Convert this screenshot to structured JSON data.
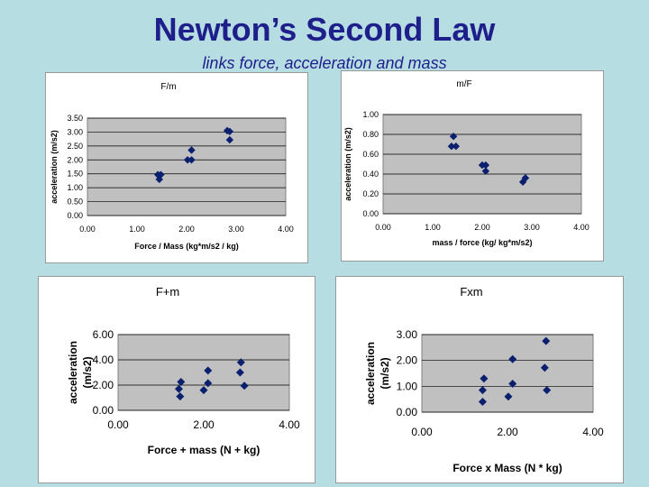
{
  "slide": {
    "title": "Newton’s Second Law",
    "subtitle": "links force, acceleration and mass"
  },
  "colors": {
    "background": "#b6dde1",
    "title": "#1f1f8c",
    "plot_area": "#c0c0c0",
    "marker": "#0a1f6e"
  },
  "chart_data": [
    {
      "type": "scatter",
      "title": "F/m",
      "xlabel": "Force / Mass   (kg*m/s2  / kg)",
      "ylabel": "acceleration (m/s2)",
      "xlim": [
        0,
        4
      ],
      "ylim": [
        0,
        3.5
      ],
      "xticks": [
        "0.00",
        "1.00",
        "2.00",
        "3.00",
        "4.00"
      ],
      "yticks": [
        "0.00",
        "0.50",
        "1.00",
        "1.50",
        "2.00",
        "2.50",
        "3.00",
        "3.50"
      ],
      "grid": true,
      "points": [
        {
          "x": 1.42,
          "y": 1.47
        },
        {
          "x": 1.48,
          "y": 1.47
        },
        {
          "x": 1.45,
          "y": 1.3
        },
        {
          "x": 2.02,
          "y": 2.0
        },
        {
          "x": 2.1,
          "y": 2.0
        },
        {
          "x": 2.1,
          "y": 2.35
        },
        {
          "x": 2.82,
          "y": 3.05
        },
        {
          "x": 2.87,
          "y": 3.02
        },
        {
          "x": 2.87,
          "y": 2.72
        }
      ]
    },
    {
      "type": "scatter",
      "title": "m/F",
      "xlabel": "mass / force   (kg/ kg*m/s2)",
      "ylabel": "acceleration (m/s2)",
      "xlim": [
        0,
        4
      ],
      "ylim": [
        0,
        1
      ],
      "xticks": [
        "0.00",
        "1.00",
        "2.00",
        "3.00",
        "4.00"
      ],
      "yticks": [
        "0.00",
        "0.20",
        "0.40",
        "0.60",
        "0.80",
        "1.00"
      ],
      "grid": true,
      "points": [
        {
          "x": 1.42,
          "y": 0.78
        },
        {
          "x": 1.38,
          "y": 0.68
        },
        {
          "x": 1.47,
          "y": 0.68
        },
        {
          "x": 2.0,
          "y": 0.49
        },
        {
          "x": 2.07,
          "y": 0.49
        },
        {
          "x": 2.07,
          "y": 0.43
        },
        {
          "x": 2.82,
          "y": 0.32
        },
        {
          "x": 2.87,
          "y": 0.36
        },
        {
          "x": 2.87,
          "y": 0.36
        }
      ]
    },
    {
      "type": "scatter",
      "title": "F+m",
      "xlabel": "Force + mass  (N + kg)",
      "ylabel": "acceleration (m/s2)",
      "xlim": [
        0,
        4
      ],
      "ylim": [
        0,
        6
      ],
      "xticks": [
        "0.00",
        "2.00",
        "4.00"
      ],
      "yticks": [
        "0.00",
        "2.00",
        "4.00",
        "6.00"
      ],
      "grid": true,
      "points": [
        {
          "x": 1.47,
          "y": 2.25
        },
        {
          "x": 1.42,
          "y": 1.7
        },
        {
          "x": 1.45,
          "y": 1.1
        },
        {
          "x": 2.0,
          "y": 1.6
        },
        {
          "x": 2.1,
          "y": 2.15
        },
        {
          "x": 2.1,
          "y": 3.15
        },
        {
          "x": 2.87,
          "y": 3.8
        },
        {
          "x": 2.85,
          "y": 3.0
        },
        {
          "x": 2.95,
          "y": 1.95
        }
      ]
    },
    {
      "type": "scatter",
      "title": "Fxm",
      "xlabel": "Force x Mass  (N * kg)",
      "ylabel": "acceleration (m/s2)",
      "xlim": [
        0,
        4
      ],
      "ylim": [
        0,
        3
      ],
      "xticks": [
        "0.00",
        "2.00",
        "4.00"
      ],
      "yticks": [
        "0.00",
        "1.00",
        "2.00",
        "3.00"
      ],
      "grid": true,
      "points": [
        {
          "x": 1.45,
          "y": 1.3
        },
        {
          "x": 1.42,
          "y": 0.85
        },
        {
          "x": 1.42,
          "y": 0.4
        },
        {
          "x": 2.02,
          "y": 0.6
        },
        {
          "x": 2.12,
          "y": 2.05
        },
        {
          "x": 2.12,
          "y": 1.1
        },
        {
          "x": 2.9,
          "y": 2.75
        },
        {
          "x": 2.87,
          "y": 1.72
        },
        {
          "x": 2.92,
          "y": 0.85
        }
      ]
    }
  ]
}
